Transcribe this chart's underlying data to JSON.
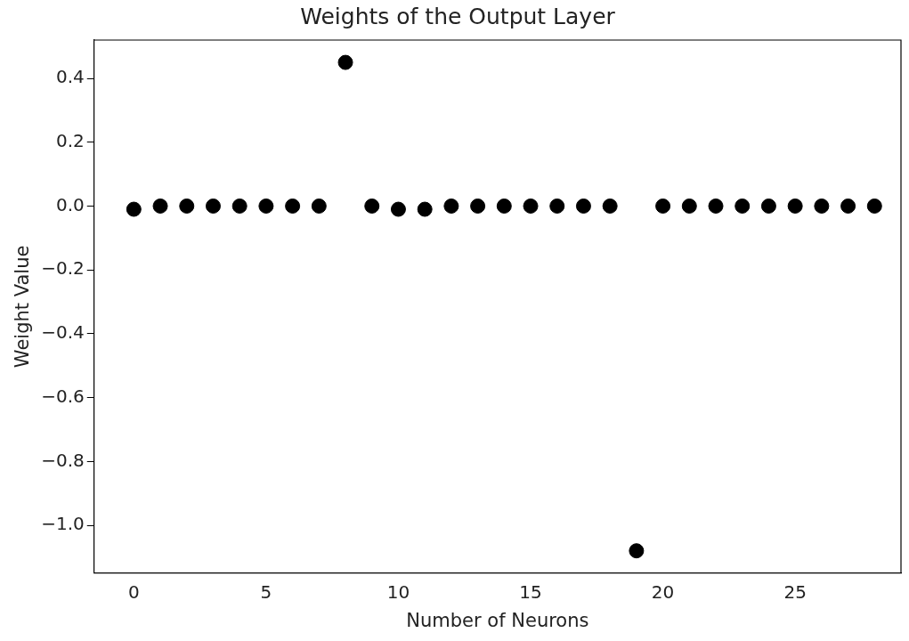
{
  "chart_data": {
    "type": "scatter",
    "title": "Weights of the Output Layer",
    "xlabel": "Number of Neurons",
    "ylabel": "Weight Value",
    "x": [
      0,
      1,
      2,
      3,
      4,
      5,
      6,
      7,
      8,
      9,
      10,
      11,
      12,
      13,
      14,
      15,
      16,
      17,
      18,
      19,
      20,
      21,
      22,
      23,
      24,
      25,
      26,
      27,
      28
    ],
    "series": [
      {
        "color": "#000000",
        "values": [
          -0.01,
          0,
          0,
          0,
          0,
          0,
          0,
          0,
          0.45,
          0,
          -0.01,
          -0.01,
          0,
          0,
          0,
          0,
          0,
          0,
          0,
          -1.08,
          0,
          0,
          0,
          0,
          0,
          0,
          0,
          0,
          0
        ]
      }
    ],
    "xlim": [
      -1.5,
      29
    ],
    "xticks": [
      0,
      5,
      10,
      15,
      20,
      25
    ],
    "ylim": [
      -1.15,
      0.52
    ],
    "yticks": [
      {
        "value": 0.4,
        "label": "0.4"
      },
      {
        "value": 0.2,
        "label": "0.2"
      },
      {
        "value": 0,
        "label": "0.0"
      },
      {
        "value": -0.2,
        "label": "−0.2"
      },
      {
        "value": -0.4,
        "label": "−0.4"
      },
      {
        "value": -0.6,
        "label": "−0.6"
      },
      {
        "value": -0.8,
        "label": "−0.8"
      },
      {
        "value": -1,
        "label": "−1.0"
      }
    ],
    "grid": false,
    "legend": false,
    "marker": "circle"
  }
}
